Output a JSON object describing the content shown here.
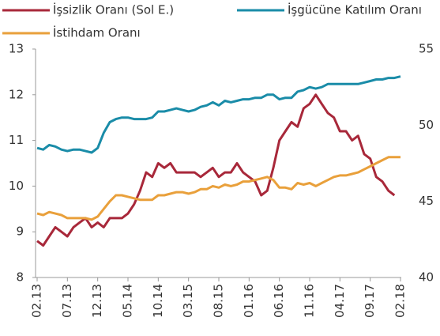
{
  "chart_data": {
    "type": "line",
    "categories": [
      "02.13",
      null,
      null,
      null,
      null,
      "07.13",
      null,
      null,
      null,
      null,
      "12.13",
      null,
      null,
      null,
      null,
      "05.14",
      null,
      null,
      null,
      null,
      "10.14",
      null,
      null,
      null,
      null,
      "03.15",
      null,
      null,
      null,
      null,
      "08.15",
      null,
      null,
      null,
      null,
      "01.16",
      null,
      null,
      null,
      null,
      "06.16",
      null,
      null,
      null,
      null,
      "11.16",
      null,
      null,
      null,
      null,
      "04.17",
      null,
      null,
      null,
      null,
      "09.17",
      null,
      null,
      null,
      null,
      "02.18"
    ],
    "series": [
      {
        "name": "İşsizlik Oranı (Sol E.)",
        "color": "#a8283a",
        "axis": "y",
        "values": [
          8.8,
          8.7,
          8.9,
          9.1,
          9.0,
          8.9,
          9.1,
          9.2,
          9.3,
          9.1,
          9.2,
          9.1,
          9.3,
          9.3,
          9.3,
          9.4,
          9.6,
          9.9,
          10.3,
          10.2,
          10.5,
          10.4,
          10.5,
          10.3,
          10.3,
          10.3,
          10.3,
          10.2,
          10.3,
          10.4,
          10.2,
          10.3,
          10.3,
          10.5,
          10.3,
          10.2,
          10.1,
          9.8,
          9.9,
          10.4,
          11.0,
          11.2,
          11.4,
          11.3,
          11.7,
          11.8,
          12.0,
          11.8,
          11.6,
          11.5,
          11.2,
          11.2,
          11.0,
          11.1,
          10.7,
          10.6,
          10.2,
          10.1,
          9.9,
          9.8,
          null
        ]
      },
      {
        "name": "İşgücüne Katılım Oranı",
        "color": "#1a8ca8",
        "axis": "y2",
        "values": [
          48.5,
          48.4,
          48.7,
          48.6,
          48.4,
          48.3,
          48.4,
          48.4,
          48.3,
          48.2,
          48.5,
          49.5,
          50.2,
          50.4,
          50.5,
          50.5,
          50.4,
          50.4,
          50.4,
          50.5,
          50.9,
          50.9,
          51.0,
          51.1,
          51.0,
          50.9,
          51.0,
          51.2,
          51.3,
          51.5,
          51.3,
          51.6,
          51.5,
          51.6,
          51.7,
          51.7,
          51.8,
          51.8,
          52.0,
          52.0,
          51.7,
          51.8,
          51.8,
          52.2,
          52.3,
          52.5,
          52.4,
          52.5,
          52.7,
          52.7,
          52.7,
          52.7,
          52.7,
          52.7,
          52.8,
          52.9,
          53.0,
          53.0,
          53.1,
          53.1,
          53.2
        ]
      },
      {
        "name": "İstihdam Oranı",
        "color": "#e9a03b",
        "axis": "y2",
        "values": [
          44.2,
          44.1,
          44.3,
          44.2,
          44.1,
          43.9,
          43.9,
          43.9,
          43.9,
          43.8,
          44.0,
          44.5,
          45.0,
          45.4,
          45.4,
          45.3,
          45.2,
          45.1,
          45.1,
          45.1,
          45.4,
          45.4,
          45.5,
          45.6,
          45.6,
          45.5,
          45.6,
          45.8,
          45.8,
          46.0,
          45.9,
          46.1,
          46.0,
          46.1,
          46.3,
          46.3,
          46.4,
          46.5,
          46.6,
          46.4,
          45.9,
          45.9,
          45.8,
          46.2,
          46.1,
          46.2,
          46.0,
          46.2,
          46.4,
          46.6,
          46.7,
          46.7,
          46.8,
          46.9,
          47.1,
          47.3,
          47.5,
          47.7,
          47.9,
          47.9,
          47.9
        ]
      }
    ],
    "ylim": [
      8,
      13
    ],
    "yticks": [
      8,
      9,
      10,
      11,
      12,
      13
    ],
    "y2lim": [
      40,
      55
    ],
    "y2ticks": [
      40,
      45,
      50,
      55
    ],
    "grid": false
  }
}
